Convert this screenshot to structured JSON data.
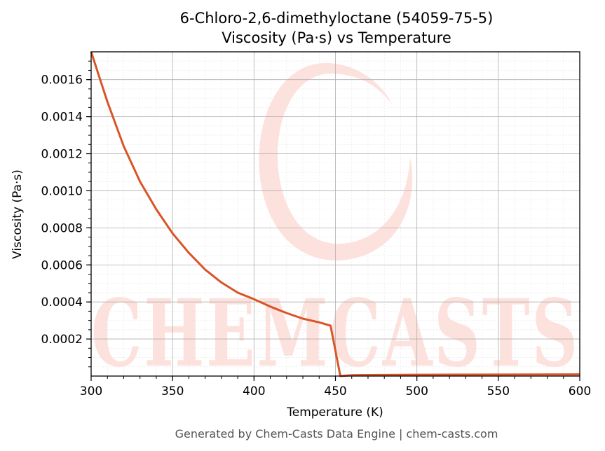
{
  "chart_data": {
    "type": "line",
    "title": "6-Chloro-2,6-dimethyloctane (54059-75-5)",
    "subtitle": "Viscosity (Pa·s) vs Temperature",
    "xlabel": "Temperature (K)",
    "ylabel": "Viscosity (Pa·s)",
    "xlim": [
      300,
      600
    ],
    "ylim": [
      0,
      0.00175
    ],
    "xticks": [
      "300",
      "350",
      "400",
      "450",
      "500",
      "550",
      "600"
    ],
    "yticks": [
      "0.0002",
      "0.0004",
      "0.0006",
      "0.0008",
      "0.0010",
      "0.0012",
      "0.0014",
      "0.0016"
    ],
    "grid": true,
    "series": [
      {
        "color": "#d95526",
        "x": [
          300,
          310,
          320,
          330,
          340,
          350,
          360,
          370,
          380,
          390,
          400,
          410,
          420,
          430,
          440,
          447,
          453,
          460,
          480,
          500,
          550,
          600
        ],
        "y": [
          0.00175,
          0.00148,
          0.00124,
          0.00105,
          0.0009,
          0.00077,
          0.000665,
          0.000575,
          0.000505,
          0.00045,
          0.000415,
          0.000375,
          0.00034,
          0.00031,
          0.00029,
          0.000272,
          0.0,
          5e-06,
          6e-06,
          7e-06,
          8e-06,
          9e-06
        ]
      }
    ]
  },
  "watermark": {
    "text": "CHEMCASTS",
    "color": "#fde1dc"
  },
  "footer": "Generated by Chem-Casts Data Engine | chem-casts.com"
}
